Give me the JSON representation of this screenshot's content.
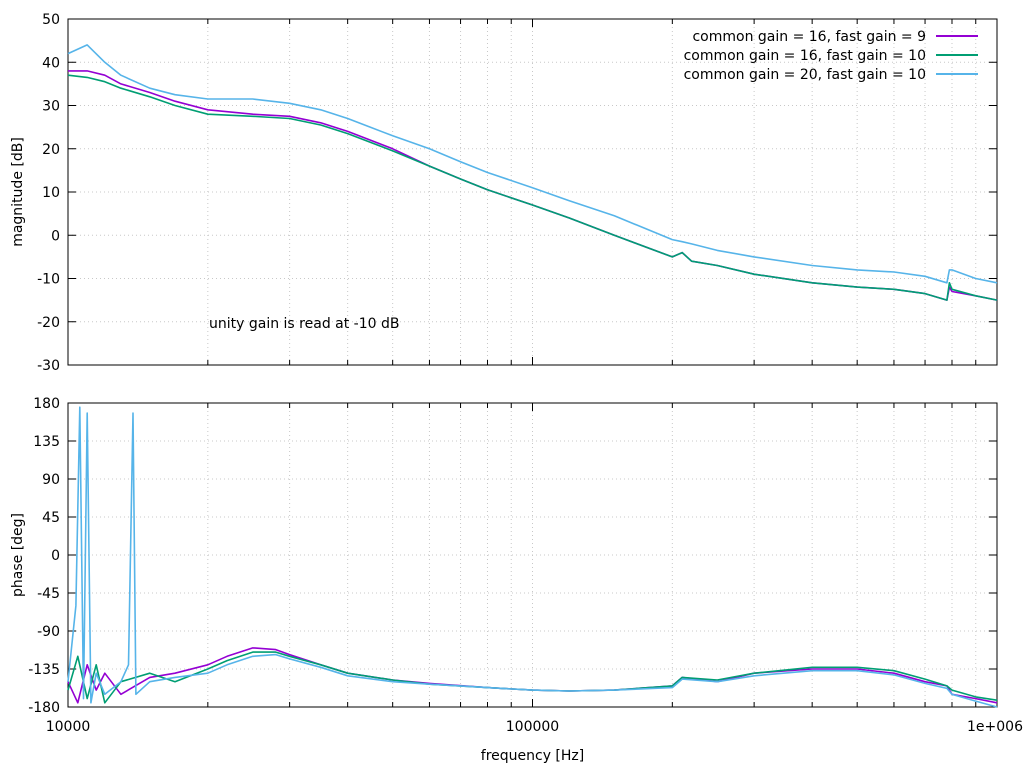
{
  "chart_data": [
    {
      "type": "line",
      "xscale": "log",
      "xlim": [
        10000,
        1000000
      ],
      "ylim": [
        -30,
        50
      ],
      "yticks": [
        -30,
        -20,
        -10,
        0,
        10,
        20,
        30,
        40,
        50
      ],
      "ylabel": "magnitude [dB]",
      "grid": true,
      "legend_position": "top-right",
      "annotation": "unity gain is read at -10 dB",
      "series": [
        {
          "name": "common gain = 16, fast gain = 9",
          "color": "#9400d3",
          "x": [
            10000,
            11000,
            12000,
            13000,
            15000,
            17000,
            20000,
            25000,
            30000,
            35000,
            40000,
            50000,
            60000,
            70000,
            80000,
            100000,
            120000,
            150000,
            200000,
            210000,
            220000,
            250000,
            300000,
            400000,
            500000,
            600000,
            700000,
            780000,
            790000,
            800000,
            900000,
            1000000
          ],
          "y": [
            38,
            38,
            37,
            35,
            33,
            31,
            29,
            28,
            27.5,
            26,
            24,
            20,
            16,
            13,
            10.5,
            7,
            4,
            0,
            -5,
            -4,
            -6,
            -7,
            -9,
            -11,
            -12,
            -12.5,
            -13.5,
            -15,
            -12,
            -13,
            -14,
            -15
          ]
        },
        {
          "name": "common gain = 16, fast gain = 10",
          "color": "#009e73",
          "x": [
            10000,
            11000,
            12000,
            13000,
            15000,
            17000,
            20000,
            25000,
            30000,
            35000,
            40000,
            50000,
            60000,
            70000,
            80000,
            100000,
            120000,
            150000,
            200000,
            210000,
            220000,
            250000,
            300000,
            400000,
            500000,
            600000,
            700000,
            780000,
            790000,
            800000,
            900000,
            1000000
          ],
          "y": [
            37,
            36.5,
            35.5,
            34,
            32,
            30,
            28,
            27.5,
            27,
            25.5,
            23.5,
            19.5,
            16,
            13,
            10.5,
            7,
            4,
            0,
            -5,
            -4,
            -6,
            -7,
            -9,
            -11,
            -12,
            -12.5,
            -13.5,
            -15,
            -11,
            -12.5,
            -14,
            -15
          ]
        },
        {
          "name": "common gain = 20, fast gain = 10",
          "color": "#56b4e9",
          "x": [
            10000,
            11000,
            12000,
            13000,
            15000,
            17000,
            20000,
            25000,
            30000,
            35000,
            40000,
            50000,
            60000,
            70000,
            80000,
            100000,
            120000,
            150000,
            200000,
            210000,
            220000,
            250000,
            300000,
            400000,
            500000,
            600000,
            700000,
            780000,
            790000,
            800000,
            900000,
            1000000
          ],
          "y": [
            42,
            44,
            40,
            37,
            34,
            32.5,
            31.5,
            31.5,
            30.5,
            29,
            27,
            23,
            20,
            17,
            14.5,
            11,
            8,
            4.5,
            -1,
            -1.5,
            -2,
            -3.5,
            -5,
            -7,
            -8,
            -8.5,
            -9.5,
            -11,
            -8,
            -8,
            -10,
            -11
          ]
        }
      ]
    },
    {
      "type": "line",
      "xscale": "log",
      "xlim": [
        10000,
        1000000
      ],
      "ylim": [
        -180,
        180
      ],
      "yticks": [
        -180,
        -135,
        -90,
        -45,
        0,
        45,
        90,
        135,
        180
      ],
      "xticks": [
        "10000",
        "100000",
        "1e+006"
      ],
      "xtick_values": [
        10000,
        100000,
        1000000
      ],
      "xlabel": "frequency [Hz]",
      "ylabel": "phase [deg]",
      "grid": true,
      "series": [
        {
          "name": "common gain = 16, fast gain = 9",
          "color": "#9400d3",
          "x": [
            10000,
            10500,
            11000,
            11500,
            12000,
            13000,
            15000,
            17000,
            20000,
            22000,
            25000,
            28000,
            30000,
            35000,
            40000,
            50000,
            60000,
            80000,
            100000,
            120000,
            150000,
            200000,
            210000,
            250000,
            300000,
            400000,
            500000,
            600000,
            700000,
            780000,
            800000,
            900000,
            1000000
          ],
          "y": [
            -150,
            -175,
            -130,
            -160,
            -140,
            -165,
            -145,
            -140,
            -130,
            -120,
            -110,
            -112,
            -118,
            -130,
            -140,
            -148,
            -152,
            -157,
            -160,
            -161,
            -160,
            -155,
            -145,
            -150,
            -140,
            -135,
            -135,
            -140,
            -150,
            -155,
            -165,
            -170,
            -175
          ]
        },
        {
          "name": "common gain = 16, fast gain = 10",
          "color": "#009e73",
          "x": [
            10000,
            10500,
            11000,
            11500,
            12000,
            13000,
            15000,
            17000,
            20000,
            22000,
            25000,
            28000,
            30000,
            35000,
            40000,
            50000,
            60000,
            80000,
            100000,
            120000,
            150000,
            200000,
            210000,
            250000,
            300000,
            400000,
            500000,
            600000,
            700000,
            780000,
            800000,
            900000,
            1000000
          ],
          "y": [
            -160,
            -120,
            -170,
            -130,
            -175,
            -150,
            -140,
            -150,
            -135,
            -125,
            -115,
            -115,
            -120,
            -130,
            -140,
            -148,
            -153,
            -157,
            -160,
            -161,
            -160,
            -155,
            -145,
            -148,
            -140,
            -133,
            -133,
            -137,
            -147,
            -155,
            -160,
            -168,
            -172
          ]
        },
        {
          "name": "common gain = 20, fast gain = 10",
          "color": "#56b4e9",
          "x": [
            10000,
            10400,
            10600,
            10800,
            11000,
            11200,
            11500,
            12000,
            13000,
            13500,
            13800,
            14000,
            15000,
            17000,
            20000,
            22000,
            25000,
            28000,
            30000,
            35000,
            40000,
            50000,
            60000,
            80000,
            100000,
            120000,
            150000,
            200000,
            210000,
            250000,
            300000,
            400000,
            500000,
            600000,
            700000,
            780000,
            800000,
            900000,
            1000000
          ],
          "y": [
            -150,
            -60,
            175,
            -170,
            168,
            -175,
            -140,
            -165,
            -150,
            -130,
            168,
            -165,
            -150,
            -145,
            -140,
            -130,
            -120,
            -118,
            -123,
            -133,
            -143,
            -150,
            -153,
            -157,
            -160,
            -161,
            -160,
            -157,
            -147,
            -150,
            -143,
            -137,
            -137,
            -142,
            -152,
            -158,
            -165,
            -173,
            -180
          ]
        }
      ]
    }
  ]
}
